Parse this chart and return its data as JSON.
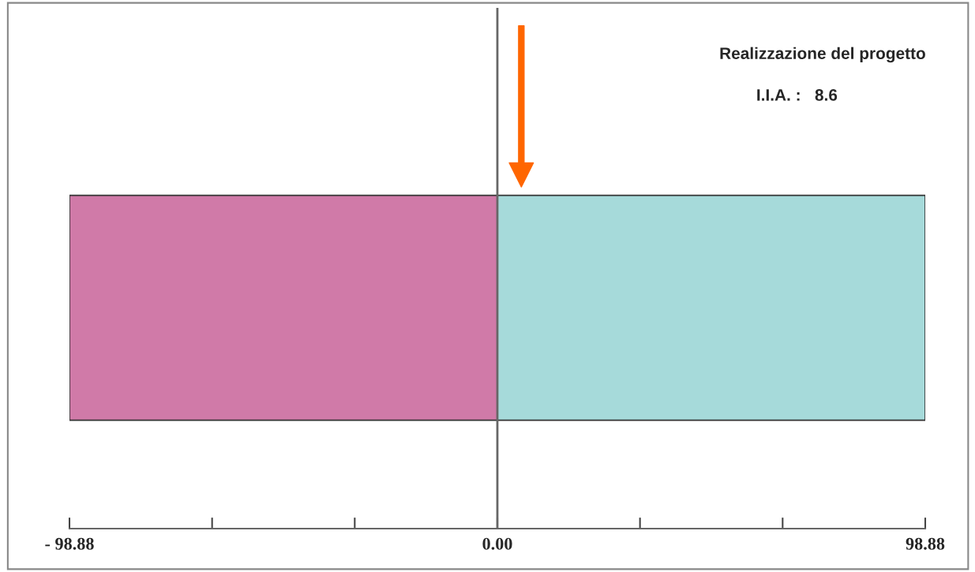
{
  "chart_data": {
    "type": "bar",
    "orientation": "horizontal",
    "stacked": true,
    "ref_lines": [
      {
        "axis": "x",
        "value": 0,
        "color": "#666666"
      }
    ],
    "categories": [
      null
    ],
    "series": [
      {
        "color": "#d07aa8",
        "values": [
          -98.88
        ]
      },
      {
        "color": "#a6dada",
        "values": [
          98.88
        ]
      }
    ],
    "xlim": [
      -98.88,
      98.88
    ],
    "xticks": [
      {
        "value": -98.88,
        "label": "- 98.88"
      },
      {
        "value": -65.92,
        "label": null
      },
      {
        "value": -32.96,
        "label": null
      },
      {
        "value": 0,
        "label": "0.00"
      },
      {
        "value": 32.96,
        "label": null
      },
      {
        "value": 65.92,
        "label": null
      },
      {
        "value": 98.88,
        "label": "98.88"
      }
    ],
    "annotations": [
      "Realizzazione del progetto",
      "I.I.A. :   8.6"
    ],
    "grid": false,
    "legend": false
  }
}
